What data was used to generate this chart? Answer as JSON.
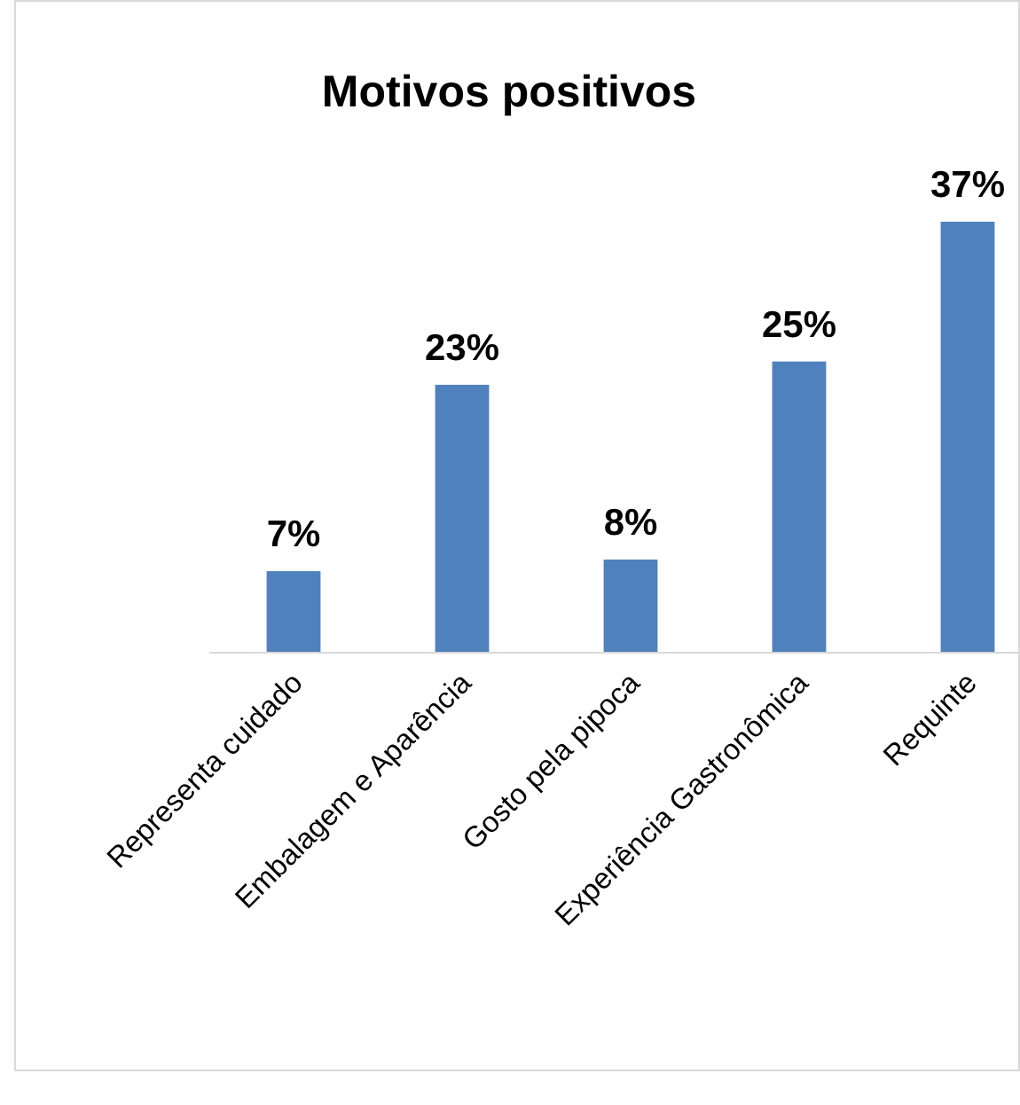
{
  "chart_data": {
    "type": "bar",
    "title": "Motivos positivos",
    "categories": [
      "Representa cuidado",
      "Embalagem e Aparência",
      "Gosto pela pipoca",
      "Experiência Gastronômica",
      "Requinte"
    ],
    "values": [
      7,
      23,
      8,
      25,
      37
    ],
    "value_labels": [
      "7%",
      "23%",
      "8%",
      "25%",
      "37%"
    ],
    "color": "#4f81bd",
    "relative": false
  }
}
